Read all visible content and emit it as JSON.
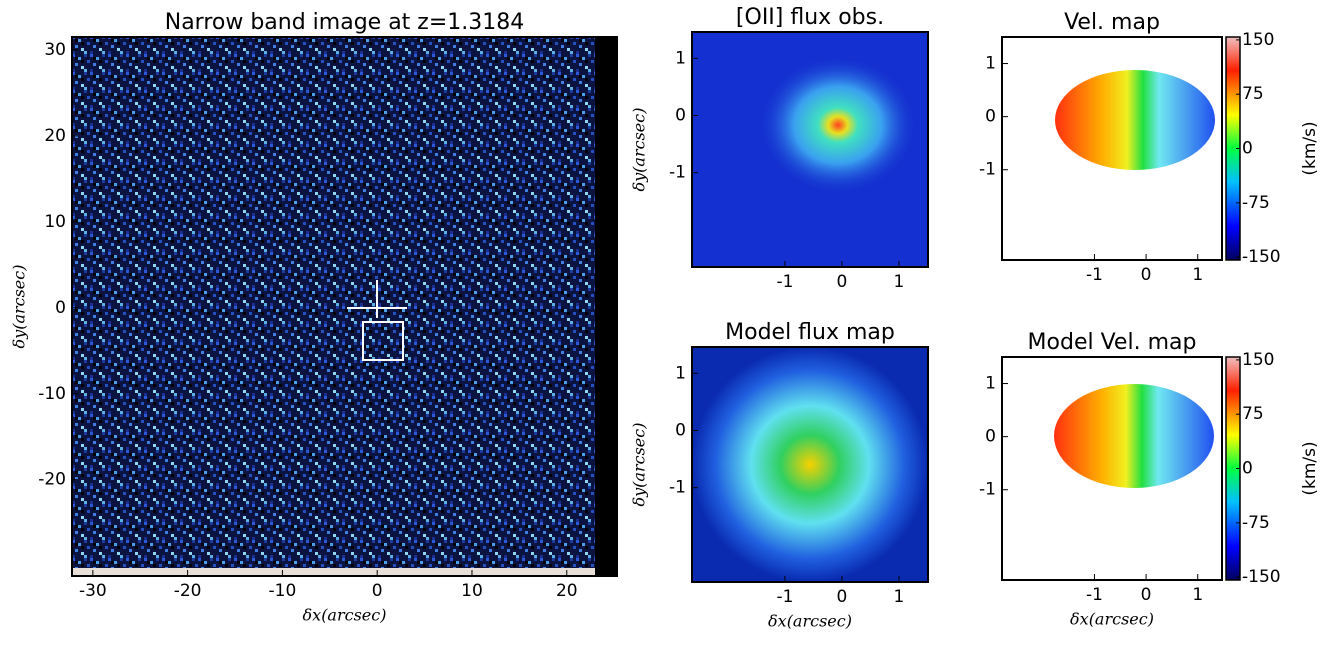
{
  "chart_data": [
    {
      "type": "image",
      "title": "Narrow band image at z=1.3184",
      "xlabel": "δx(arcsec)",
      "ylabel": "δy(arcsec)",
      "xlim": [
        -32.2,
        25.3
      ],
      "ylim": [
        -31.2,
        31.5
      ],
      "xticks": [
        -30,
        -20,
        -10,
        0,
        10,
        20
      ],
      "yticks": [
        -20,
        -10,
        0,
        10,
        20,
        30
      ]
    },
    {
      "type": "image",
      "title": "[OII] flux obs.",
      "ylabel": "δy(arcsec)",
      "xlim": [
        -2.63,
        1.51
      ],
      "ylim": [
        -2.65,
        1.46
      ],
      "xticks": [
        -1,
        0,
        1
      ],
      "yticks": [
        -1,
        0,
        1
      ]
    },
    {
      "type": "image",
      "title": "Vel. map",
      "xlim": [
        -2.79,
        1.47
      ],
      "ylim": [
        -2.7,
        1.5
      ],
      "xticks": [
        -1,
        0,
        1
      ],
      "yticks": [
        -1,
        0,
        1
      ],
      "colorbar": {
        "label": "(km/s)",
        "lim": [
          -154,
          154
        ],
        "ticks": [
          -150,
          -75,
          0,
          75,
          150
        ]
      }
    },
    {
      "type": "image",
      "title": "Model flux map",
      "xlabel": "δx(arcsec)",
      "ylabel": "δy(arcsec)",
      "xlim": [
        -2.63,
        1.51
      ],
      "ylim": [
        -2.65,
        1.46
      ],
      "xticks": [
        -1,
        0,
        1
      ],
      "yticks": [
        -1,
        0,
        1
      ]
    },
    {
      "type": "image",
      "title": "Model Vel. map",
      "xlabel": "δx(arcsec)",
      "xlim": [
        -2.79,
        1.47
      ],
      "ylim": [
        -2.7,
        1.5
      ],
      "xticks": [
        -1,
        0,
        1
      ],
      "yticks": [
        -1,
        0,
        1
      ],
      "colorbar": {
        "label": "(km/s)",
        "lim": [
          -154,
          154
        ],
        "ticks": [
          -150,
          -75,
          0,
          75,
          150
        ]
      }
    }
  ]
}
